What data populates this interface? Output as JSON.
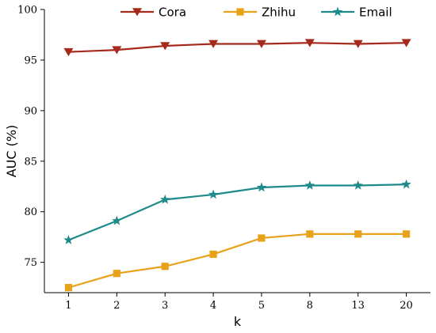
{
  "chart_data": {
    "type": "line",
    "xlabel": "k",
    "ylabel": "AUC (%)",
    "categories": [
      "1",
      "2",
      "3",
      "4",
      "5",
      "8",
      "13",
      "20"
    ],
    "ylim": [
      72,
      100
    ],
    "yticks": [
      75,
      80,
      85,
      90,
      95,
      100
    ],
    "grid": false,
    "legend_position": "top-center",
    "series": [
      {
        "name": "Cora",
        "color": "#a52a1c",
        "marker": "triangle-down-icon",
        "values": [
          95.8,
          96.0,
          96.4,
          96.6,
          96.6,
          96.7,
          96.6,
          96.7
        ]
      },
      {
        "name": "Zhihu",
        "color": "#e8a21a",
        "marker": "square-icon",
        "values": [
          72.5,
          73.9,
          74.6,
          75.8,
          77.4,
          77.8,
          77.8,
          77.8
        ]
      },
      {
        "name": "Email",
        "color": "#1f8a8a",
        "marker": "star-icon",
        "values": [
          77.2,
          79.1,
          81.2,
          81.7,
          82.4,
          82.6,
          82.6,
          82.7
        ]
      }
    ]
  }
}
